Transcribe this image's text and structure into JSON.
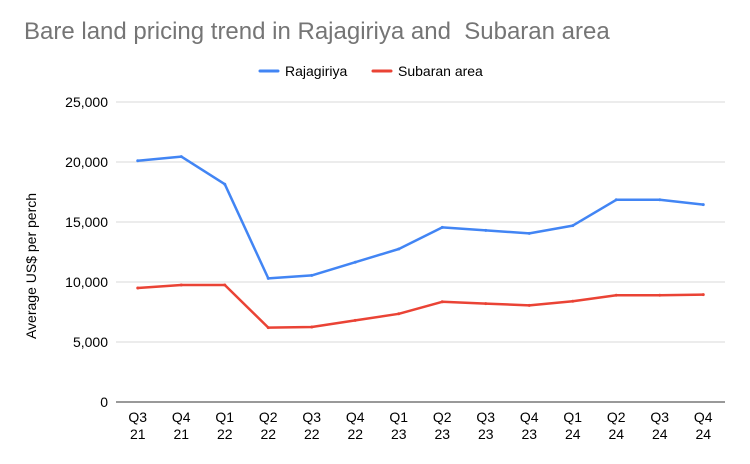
{
  "chart_data": {
    "type": "line",
    "title": "Bare land pricing trend in Rajagiriya and  Subaran area",
    "xlabel": "",
    "ylabel": "Average US$ per perch",
    "ylim": [
      0,
      25000
    ],
    "yticks": [
      0,
      5000,
      10000,
      15000,
      20000,
      25000
    ],
    "ytick_labels": [
      "0",
      "5,000",
      "10,000",
      "15,000",
      "20,000",
      "25,000"
    ],
    "grid": true,
    "legend_position": "top-center",
    "categories": [
      [
        "Q3",
        "21"
      ],
      [
        "Q4",
        "21"
      ],
      [
        "Q1",
        "22"
      ],
      [
        "Q2",
        "22"
      ],
      [
        "Q3",
        "22"
      ],
      [
        "Q4",
        "22"
      ],
      [
        "Q1",
        "23"
      ],
      [
        "Q2",
        "23"
      ],
      [
        "Q3",
        "23"
      ],
      [
        "Q4",
        "23"
      ],
      [
        "Q1",
        "24"
      ],
      [
        "Q2",
        "24"
      ],
      [
        "Q3",
        "24"
      ],
      [
        "Q4",
        "24"
      ]
    ],
    "series": [
      {
        "name": "Rajagiriya",
        "color": "#4285f4",
        "values": [
          20100,
          20450,
          18150,
          10300,
          10550,
          11650,
          12750,
          14550,
          14300,
          14050,
          14700,
          16850,
          16850,
          16450
        ]
      },
      {
        "name": "Subaran area",
        "color": "#ea4335",
        "values": [
          9500,
          9750,
          9750,
          6200,
          6250,
          6800,
          7350,
          8350,
          8200,
          8050,
          8400,
          8900,
          8900,
          8950
        ]
      }
    ]
  }
}
